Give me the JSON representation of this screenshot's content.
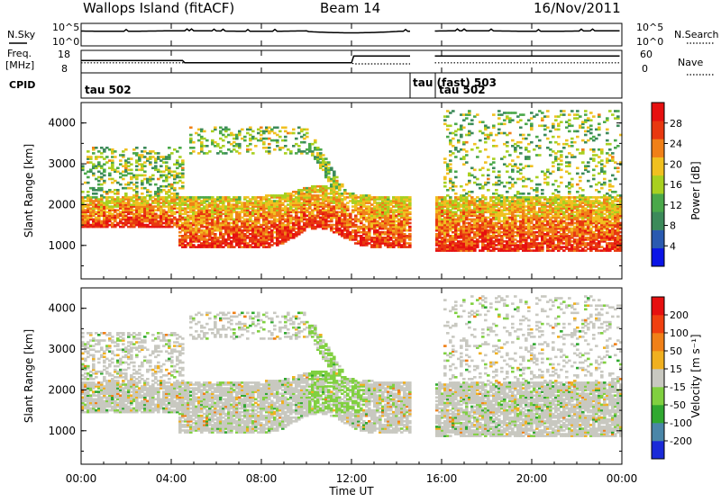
{
  "title": {
    "station": "Wallops Island (fitACF)",
    "beam": "Beam 14",
    "date": "16/Nov/2011"
  },
  "chart_data": {
    "type": "heatmap",
    "xlabel": "Time UT",
    "x_ticks": [
      "00:00",
      "04:00",
      "08:00",
      "12:00",
      "16:00",
      "20:00",
      "00:00"
    ],
    "xlim_hours": [
      0,
      24
    ],
    "data_gap_hours": [
      14.6,
      15.65
    ],
    "panels": [
      {
        "name": "nsky",
        "label": "N.Sky",
        "right_label": "N.Search",
        "tick_labels": [
          "10^5",
          "10^0"
        ],
        "right_tick_labels": [
          "10^5",
          "10^0"
        ]
      },
      {
        "name": "freq",
        "label_line1": "Freq.",
        "label_line2": "[MHz]",
        "tick_labels": [
          "18",
          "8"
        ],
        "right_label": "Nave",
        "right_tick_labels": [
          "60",
          "0"
        ]
      },
      {
        "name": "cpid",
        "label": "CPID",
        "segments": [
          {
            "label": "tau 502",
            "start_hour": 0.0
          },
          {
            "label": "tau (fast) 503",
            "start_hour": 14.55
          },
          {
            "label": "tau 502",
            "start_hour": 15.65
          }
        ]
      },
      {
        "name": "power",
        "ylabel": "Slant Range [km]",
        "yticks": [
          "4000",
          "3000",
          "2000",
          "1000"
        ],
        "ylim_km": [
          180,
          4500
        ],
        "colorbar": {
          "label": "Power [dB]",
          "ticks": [
            "28",
            "24",
            "20",
            "16",
            "12",
            "8",
            "4"
          ],
          "colors": [
            "#0a14e6",
            "#2a5ab0",
            "#3c8a5a",
            "#4aa84a",
            "#a8d020",
            "#f0c020",
            "#f08018",
            "#e83810",
            "#e61010"
          ]
        }
      },
      {
        "name": "velocity",
        "ylabel": "Slant Range [km]",
        "yticks": [
          "4000",
          "3000",
          "2000",
          "1000"
        ],
        "ylim_km": [
          180,
          4500
        ],
        "colorbar": {
          "label": "Velocity [m s⁻¹]",
          "ticks": [
            "200",
            "100",
            "50",
            "15",
            "-15",
            "-50",
            "-100",
            "-200"
          ],
          "colors": [
            "#1a2ad8",
            "#4a86a8",
            "#30a830",
            "#80d040",
            "#c8c8c0",
            "#f0b020",
            "#f08018",
            "#f04010",
            "#e61010"
          ]
        }
      }
    ]
  }
}
